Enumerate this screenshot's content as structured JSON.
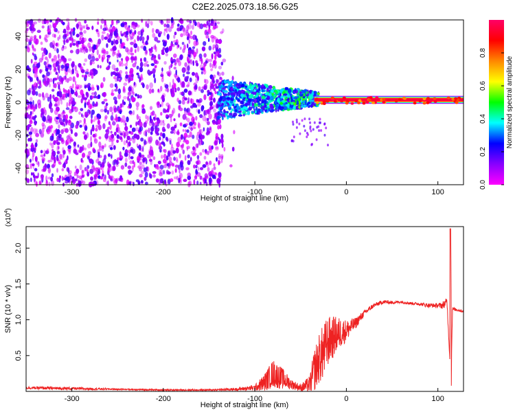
{
  "figure_title": "C2E2.2025.073.18.56.G25",
  "chart_data": [
    {
      "type": "heatmap",
      "xlabel": "Height of straight line (km)",
      "ylabel": "Frequency (Hz)",
      "xlim": [
        -350,
        128
      ],
      "ylim": [
        -50,
        50
      ],
      "xticks": [
        -300,
        -200,
        -100,
        0,
        100
      ],
      "xtick_labels": [
        "-300",
        "-200",
        "-100",
        "0",
        "100"
      ],
      "yticks": [
        -40,
        -20,
        0,
        20,
        40
      ],
      "ytick_labels": [
        "-40",
        "-20",
        "0",
        "20",
        "40"
      ],
      "colorbar": {
        "label": "Normalized spectral amplitude",
        "range": [
          0.0,
          1.0
        ],
        "ticks": [
          0.0,
          0.2,
          0.4,
          0.6,
          0.8
        ],
        "tick_labels": [
          "0.0",
          "0.2",
          "0.4",
          "0.6",
          "0.8"
        ],
        "colormap": [
          "#ff00ff",
          "#8800ff",
          "#0000ff",
          "#00ffff",
          "#00ff00",
          "#ffff00",
          "#ff8800",
          "#ff0000",
          "#ff0066"
        ]
      },
      "regions": [
        {
          "x_range": [
            -350,
            -135
          ],
          "freq_range": [
            -50,
            50
          ],
          "amplitude": [
            0.0,
            0.2
          ],
          "description": "broadband noise"
        },
        {
          "x_range": [
            -140,
            -30
          ],
          "freq_range": [
            -10,
            12
          ],
          "amplitude": [
            0.2,
            0.6
          ],
          "description": "emerging signal"
        },
        {
          "x_range": [
            -30,
            128
          ],
          "freq_range": [
            0,
            3
          ],
          "amplitude": [
            0.8,
            1.0
          ],
          "description": "tone near 1-2 Hz"
        }
      ],
      "grid": false
    },
    {
      "type": "line",
      "xlabel": "Height of straight line (km)",
      "ylabel": "SNR (10 * v/v)",
      "y_multiplier_label": "(x10",
      "y_multiplier_exp": "4",
      "y_multiplier_close": ")",
      "xlim": [
        -350,
        128
      ],
      "ylim": [
        0,
        2.3
      ],
      "xticks": [
        -300,
        -200,
        -100,
        0,
        100
      ],
      "xtick_labels": [
        "-300",
        "-200",
        "-100",
        "0",
        "100"
      ],
      "yticks": [
        0.5,
        1.0,
        1.5,
        2.0
      ],
      "ytick_labels": [
        "0.5",
        "1.0",
        "1.5",
        "2.0"
      ],
      "line_color": "#ee2222",
      "series": [
        {
          "x": [
            -350,
            -300,
            -250,
            -200,
            -150,
            -120,
            -100,
            -90,
            -80,
            -70,
            -60,
            -50,
            -40,
            -35,
            -30,
            -25,
            -20,
            -15,
            -10,
            0,
            10,
            20,
            30,
            40,
            50,
            60,
            70,
            80,
            90,
            100,
            105,
            110,
            113,
            114,
            115,
            116,
            120,
            128
          ],
          "values": [
            0.05,
            0.04,
            0.03,
            0.02,
            0.02,
            0.03,
            0.05,
            0.12,
            0.25,
            0.18,
            0.1,
            0.05,
            0.1,
            0.3,
            0.45,
            0.55,
            0.7,
            0.75,
            0.8,
            0.85,
            0.95,
            1.1,
            1.2,
            1.25,
            1.24,
            1.25,
            1.23,
            1.22,
            1.2,
            1.2,
            1.2,
            1.25,
            0.45,
            2.27,
            0.55,
            1.15,
            1.14,
            1.12
          ],
          "noise": [
            0.02,
            0.02,
            0.01,
            0.01,
            0.01,
            0.02,
            0.04,
            0.12,
            0.2,
            0.15,
            0.07,
            0.05,
            0.12,
            0.3,
            0.35,
            0.4,
            0.35,
            0.3,
            0.25,
            0.15,
            0.08,
            0.04,
            0.03,
            0.03,
            0.02,
            0.02,
            0.02,
            0.02,
            0.03,
            0.03,
            0.05,
            0.06,
            0.0,
            0.0,
            0.0,
            0.03,
            0.02,
            0.02
          ]
        }
      ],
      "grid": false
    }
  ]
}
